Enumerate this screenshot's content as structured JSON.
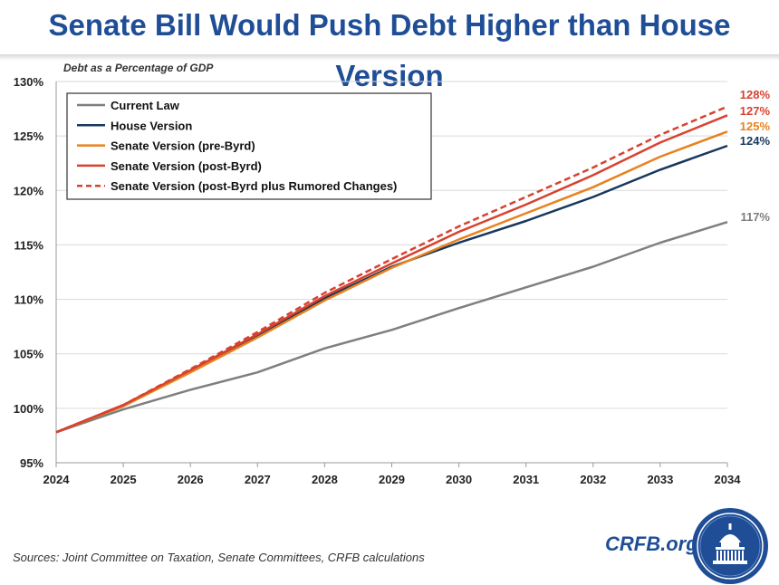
{
  "title": "Senate Bill Would Push Debt Higher than House Version",
  "source": "Sources: Joint Committee on Taxation, Senate Committees, CRFB calculations",
  "brand": "CRFB.org",
  "colors": {
    "title": "#1f4e96",
    "current_law": "#7f7f7f",
    "house": "#17375e",
    "senate_pre_byrd": "#e8821e",
    "senate_post_byrd": "#d8412f",
    "senate_rumored": "#d8412f"
  },
  "chart_data": {
    "type": "line",
    "subtitle": "Debt as a Percentage of GDP",
    "x": [
      2024,
      2025,
      2026,
      2027,
      2028,
      2029,
      2030,
      2031,
      2032,
      2033,
      2034
    ],
    "ylim": [
      95,
      130
    ],
    "y_ticks": [
      95,
      100,
      105,
      110,
      115,
      120,
      125,
      130
    ],
    "y_tick_labels": [
      "95%",
      "100%",
      "105%",
      "110%",
      "115%",
      "120%",
      "125%",
      "130%"
    ],
    "grid": true,
    "legend_position": "top-left",
    "series": [
      {
        "name": "Current Law",
        "color": "#7f7f7f",
        "style": "solid",
        "end_label": "117%",
        "values": [
          97.8,
          99.9,
          101.7,
          103.3,
          105.5,
          107.2,
          109.2,
          111.1,
          113.0,
          115.2,
          117.1
        ]
      },
      {
        "name": "House Version",
        "color": "#17375e",
        "style": "solid",
        "end_label": "124%",
        "values": [
          97.8,
          100.2,
          103.4,
          106.6,
          110.1,
          113.0,
          115.2,
          117.2,
          119.4,
          121.9,
          124.1
        ]
      },
      {
        "name": "Senate Version (pre-Byrd)",
        "color": "#e8821e",
        "style": "solid",
        "end_label": "125%",
        "values": [
          97.8,
          100.2,
          103.3,
          106.5,
          109.9,
          112.9,
          115.5,
          117.9,
          120.3,
          123.1,
          125.4
        ]
      },
      {
        "name": "Senate Version (post-Byrd)",
        "color": "#d8412f",
        "style": "solid",
        "end_label": "127%",
        "values": [
          97.8,
          100.3,
          103.5,
          106.8,
          110.3,
          113.3,
          116.2,
          118.7,
          121.4,
          124.4,
          126.9
        ]
      },
      {
        "name": "Senate Version (post-Byrd plus Rumored Changes)",
        "color": "#d8412f",
        "style": "dashed",
        "end_label": "128%",
        "values": [
          97.8,
          100.3,
          103.6,
          107.0,
          110.6,
          113.7,
          116.7,
          119.4,
          122.1,
          125.1,
          127.7
        ]
      }
    ]
  }
}
